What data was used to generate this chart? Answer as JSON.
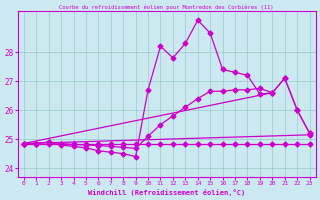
{
  "title": "Courbe du refroidissement éolien pour Montredon des Corbières (11)",
  "xlabel": "Windchill (Refroidissement éolien,°C)",
  "bg_color": "#cce8f0",
  "line_color": "#cc00cc",
  "grid_color": "#99cccc",
  "xlim": [
    -0.5,
    23.5
  ],
  "ylim": [
    23.7,
    29.4
  ],
  "xticks": [
    0,
    1,
    2,
    3,
    4,
    5,
    6,
    7,
    8,
    9,
    10,
    11,
    12,
    13,
    14,
    15,
    16,
    17,
    18,
    19,
    20,
    21,
    22,
    23
  ],
  "yticks": [
    24,
    25,
    26,
    27,
    28
  ],
  "curve_main": {
    "x": [
      0,
      1,
      2,
      3,
      4,
      5,
      6,
      7,
      8,
      9,
      10,
      11,
      12,
      13,
      14,
      15,
      16,
      17,
      18,
      19,
      20,
      21,
      22,
      23
    ],
    "y": [
      24.85,
      24.85,
      24.9,
      24.8,
      24.75,
      24.7,
      24.6,
      24.55,
      24.5,
      24.4,
      26.7,
      28.2,
      27.8,
      28.3,
      29.1,
      28.65,
      27.4,
      27.3,
      27.2,
      26.55,
      26.6,
      27.1,
      26.0,
      25.2
    ]
  },
  "curve_smooth": {
    "x": [
      0,
      1,
      2,
      3,
      4,
      5,
      6,
      7,
      8,
      9,
      10,
      11,
      12,
      13,
      14,
      15,
      16,
      17,
      18,
      19,
      20,
      21,
      22,
      23
    ],
    "y": [
      24.85,
      24.85,
      24.9,
      24.85,
      24.82,
      24.8,
      24.78,
      24.75,
      24.72,
      24.68,
      25.1,
      25.5,
      25.8,
      26.1,
      26.4,
      26.65,
      26.65,
      26.7,
      26.7,
      26.75,
      26.6,
      27.1,
      26.0,
      25.2
    ]
  },
  "curve_flat": {
    "x": [
      0,
      1,
      2,
      3,
      4,
      5,
      6,
      7,
      8,
      9,
      10,
      11,
      12,
      13,
      14,
      15,
      16,
      17,
      18,
      19,
      20,
      21,
      22,
      23
    ],
    "y": [
      24.85,
      24.85,
      24.85,
      24.85,
      24.85,
      24.85,
      24.85,
      24.85,
      24.85,
      24.85,
      24.85,
      24.85,
      24.85,
      24.85,
      24.85,
      24.85,
      24.85,
      24.85,
      24.85,
      24.85,
      24.85,
      24.85,
      24.85,
      24.85
    ]
  },
  "line_long": {
    "x": [
      0,
      23
    ],
    "y": [
      24.85,
      25.15
    ]
  },
  "line_short": {
    "x": [
      0,
      20
    ],
    "y": [
      24.85,
      26.6
    ]
  }
}
